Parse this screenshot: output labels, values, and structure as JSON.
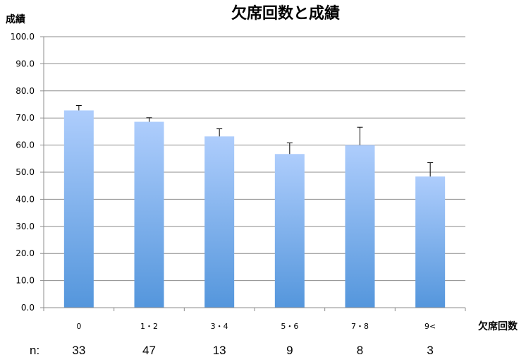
{
  "chart_data": {
    "type": "bar",
    "title": "欠席回数と成績",
    "xlabel": "欠席回数",
    "ylabel": "成績",
    "categories": [
      "0",
      "1・2",
      "3・4",
      "5・6",
      "7・8",
      "9<"
    ],
    "values": [
      72.8,
      68.6,
      63.2,
      56.7,
      60.0,
      48.4
    ],
    "error_plus": [
      1.8,
      1.5,
      2.8,
      4.1,
      6.6,
      5.1
    ],
    "ylim": [
      0,
      100
    ],
    "yticks": [
      "0.0",
      "10.0",
      "20.0",
      "30.0",
      "40.0",
      "50.0",
      "60.0",
      "70.0",
      "80.0",
      "90.0",
      "100.0"
    ],
    "grid": true,
    "bar_gradient": [
      "#aecdfc",
      "#5496dc"
    ]
  },
  "sample_sizes": {
    "label": "n:",
    "values": [
      "33",
      "47",
      "13",
      "9",
      "8",
      "3"
    ]
  }
}
